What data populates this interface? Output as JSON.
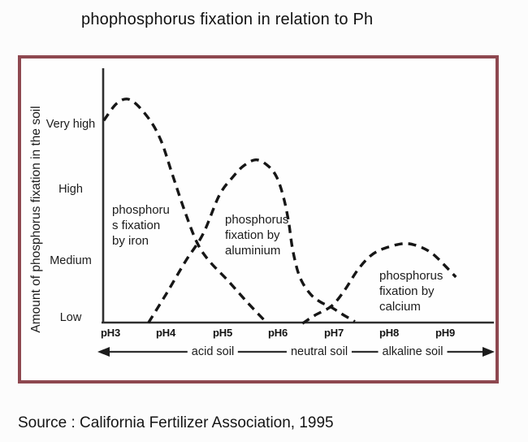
{
  "page": {
    "title": "phophosphorus fixation in relation to Ph",
    "source": "Source : California Fertilizer Association, 1995"
  },
  "colors": {
    "frame_border": "#8e4850",
    "ink": "#1c1c1c",
    "curve": "#161616",
    "axis": "#2f2f2f",
    "page_background": "#fcfcfc"
  },
  "chart_data": {
    "type": "line",
    "title": "phophosphorus fixation in relation to Ph",
    "ylabel": "Amount of phosphorus fixation in the soil",
    "y_tick_labels": [
      "Very high",
      "High",
      "Medium",
      "Low"
    ],
    "y_scale": "qualitative: 1=Low, 2=Medium, 3=High, 4=Very high",
    "x_tick_labels": [
      "pH3",
      "pH4",
      "pH5",
      "pH6",
      "pH7",
      "pH8",
      "pH9"
    ],
    "x_unit": "pH",
    "x_range": [
      2.9,
      9.3
    ],
    "grid": false,
    "line_style": "dashed",
    "soil_zones": [
      "acid soil",
      "neutral soil",
      "alkaline soil"
    ],
    "series": [
      {
        "name": "phosphorus fixation by iron",
        "x": [
          2.88,
          3.12,
          3.36,
          3.67,
          3.9,
          4.11,
          4.34,
          4.56,
          4.78,
          5.1,
          5.45,
          5.78
        ],
        "y": [
          4.06,
          4.33,
          4.38,
          4.11,
          3.76,
          3.22,
          2.63,
          2.15,
          1.87,
          1.58,
          1.24,
          0.94
        ]
      },
      {
        "name": "phosphorus fixation by aluminium",
        "x": [
          3.68,
          4.0,
          4.34,
          4.66,
          4.95,
          5.2,
          5.39,
          5.61,
          5.82,
          5.98,
          6.1,
          6.19,
          6.26,
          6.35,
          6.45,
          6.6,
          6.77,
          6.96,
          7.16,
          7.38
        ],
        "y": [
          0.92,
          1.37,
          1.87,
          2.3,
          2.9,
          3.19,
          3.36,
          3.45,
          3.36,
          3.18,
          2.87,
          2.5,
          2.08,
          1.74,
          1.53,
          1.35,
          1.24,
          1.16,
          1.05,
          0.94
        ]
      },
      {
        "name": "phosphorus fixation by calcium",
        "x": [
          6.44,
          6.67,
          6.96,
          7.19,
          7.43,
          7.66,
          7.89,
          8.25,
          8.52,
          8.76,
          8.98,
          9.19
        ],
        "y": [
          0.91,
          1.04,
          1.18,
          1.42,
          1.74,
          1.96,
          2.07,
          2.15,
          2.11,
          2.0,
          1.82,
          1.63
        ]
      }
    ],
    "annotations": [
      {
        "text": "phosphorus fixation by iron",
        "lines": [
          "phosphoru",
          "s fixation",
          "by iron"
        ]
      },
      {
        "text": "phosphorus fixation by aluminium",
        "lines": [
          "phosphorus",
          "fixation by",
          "aluminium"
        ]
      },
      {
        "text": "phosphorus fixation by calcium",
        "lines": [
          "phosphorus",
          "fixation by",
          "calcium"
        ]
      }
    ]
  }
}
